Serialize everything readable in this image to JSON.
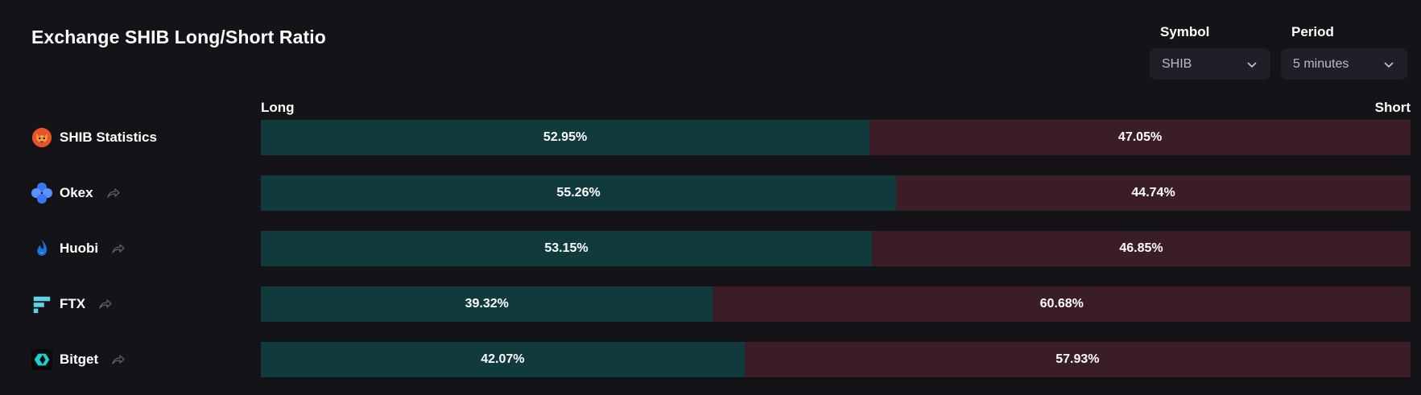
{
  "title": "Exchange SHIB Long/Short Ratio",
  "filters": {
    "symbol": {
      "label": "Symbol",
      "value": "SHIB"
    },
    "period": {
      "label": "Period",
      "value": "5 minutes"
    }
  },
  "colors": {
    "long": "#113a3d",
    "short": "#3b1d27",
    "background": "#141318"
  },
  "chart_data": {
    "type": "bar",
    "orientation": "horizontal-stacked",
    "title": "Exchange SHIB Long/Short Ratio",
    "column_labels": {
      "long": "Long",
      "short": "Short"
    },
    "categories": [
      "SHIB Statistics",
      "Okex",
      "Huobi",
      "FTX",
      "Bitget"
    ],
    "series": [
      {
        "name": "Long",
        "values": [
          52.95,
          55.26,
          53.15,
          39.32,
          42.07
        ]
      },
      {
        "name": "Short",
        "values": [
          47.05,
          44.74,
          46.85,
          60.68,
          57.93
        ]
      }
    ],
    "labels": {
      "long": [
        "52.95%",
        "55.26%",
        "53.15%",
        "39.32%",
        "42.07%"
      ],
      "short": [
        "47.05%",
        "44.74%",
        "46.85%",
        "60.68%",
        "57.93%"
      ]
    },
    "xlim": [
      0,
      100
    ]
  },
  "rows": [
    {
      "name": "SHIB Statistics",
      "icon": "shib-logo-icon",
      "has_link": false
    },
    {
      "name": "Okex",
      "icon": "okex-logo-icon",
      "has_link": true
    },
    {
      "name": "Huobi",
      "icon": "huobi-logo-icon",
      "has_link": true
    },
    {
      "name": "FTX",
      "icon": "ftx-logo-icon",
      "has_link": true
    },
    {
      "name": "Bitget",
      "icon": "bitget-logo-icon",
      "has_link": true
    }
  ]
}
